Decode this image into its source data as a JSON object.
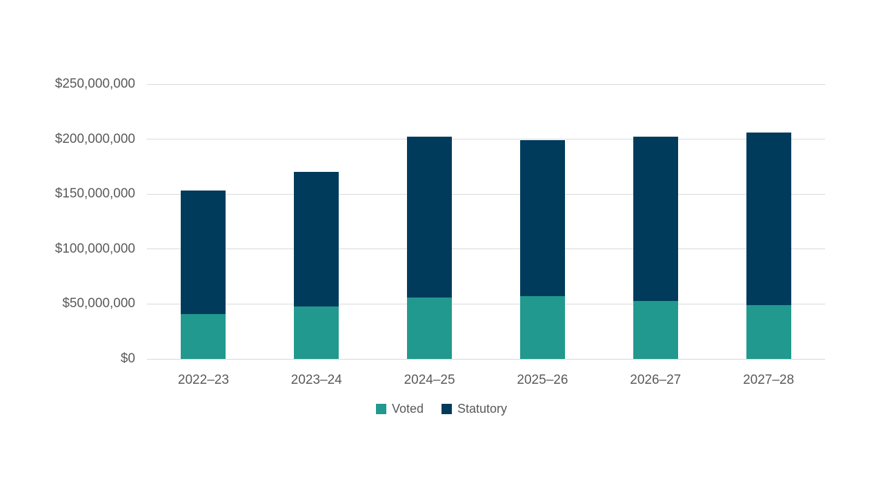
{
  "chart_data": {
    "type": "bar",
    "stacked": true,
    "title": "",
    "xlabel": "",
    "ylabel": "",
    "categories": [
      "2022–23",
      "2023–24",
      "2024–25",
      "2025–26",
      "2026–27",
      "2027–28"
    ],
    "series": [
      {
        "name": "Voted",
        "color": "#22998F",
        "values": [
          41000000,
          48000000,
          56000000,
          57000000,
          53000000,
          49000000
        ]
      },
      {
        "name": "Statutory",
        "color": "#003B5C",
        "values": [
          112000000,
          122000000,
          146000000,
          142000000,
          149000000,
          157000000
        ]
      }
    ],
    "totals": [
      153000000,
      170000000,
      202000000,
      199000000,
      202000000,
      206000000
    ],
    "ylim": [
      0,
      250000000
    ],
    "y_ticks": [
      {
        "value": 0,
        "label": "$0"
      },
      {
        "value": 50000000,
        "label": "$50,000,000"
      },
      {
        "value": 100000000,
        "label": "$100,000,000"
      },
      {
        "value": 150000000,
        "label": "$150,000,000"
      },
      {
        "value": 200000000,
        "label": "$200,000,000"
      },
      {
        "value": 250000000,
        "label": "$250,000,000"
      }
    ],
    "grid": true,
    "legend_position": "bottom"
  },
  "style": {
    "text_color": "#595959",
    "gridline_color": "#D9D9D9",
    "background": "#ffffff"
  }
}
